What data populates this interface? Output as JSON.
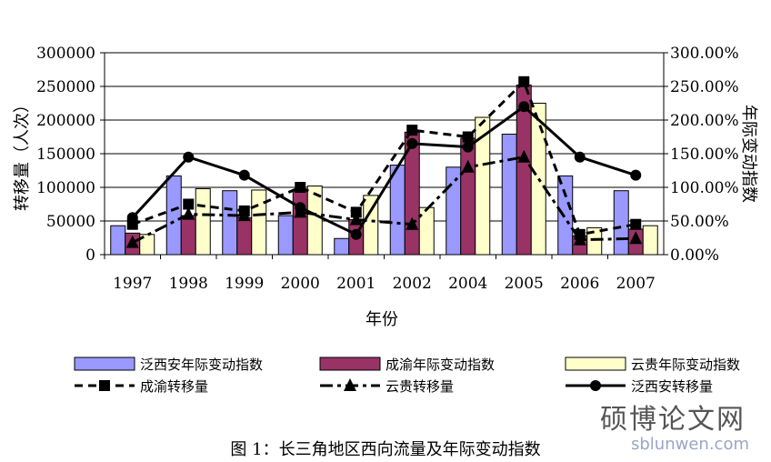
{
  "caption": "图 1：长三角地区西向流量及年际变动指数",
  "watermark": {
    "main": "硕博论文网",
    "sub": "sblunwen.com"
  },
  "chart_data": {
    "type": "bar",
    "categories": [
      "1997",
      "1998",
      "1999",
      "2000",
      "2001",
      "2002",
      "2004",
      "2005",
      "2006",
      "2007"
    ],
    "xlabel": "年份",
    "ylabel_left": "转移量（人次）",
    "ylabel_right": "年际变动指数",
    "ylim_left": [
      0,
      300000
    ],
    "yticks_left": [
      "0",
      "50000",
      "100000",
      "150000",
      "200000",
      "250000",
      "300000"
    ],
    "ylim_right": [
      0,
      3.0
    ],
    "yticks_right": [
      "0.00%",
      "50.00%",
      "100.00%",
      "150.00%",
      "200.00%",
      "250.00%",
      "300.00%"
    ],
    "grid": true,
    "bars": [
      {
        "name": "泛西安年际变动指数",
        "color": "#9999ff",
        "values": [
          0.43,
          1.17,
          0.95,
          0.58,
          0.24,
          1.33,
          1.3,
          1.79,
          1.17,
          0.95
        ]
      },
      {
        "name": "成渝年际变动指数",
        "color": "#993366",
        "values": [
          0.32,
          0.58,
          0.55,
          0.97,
          0.52,
          1.82,
          1.73,
          2.52,
          0.28,
          0.38
        ]
      },
      {
        "name": "云贵年际变动指数",
        "color": "#ffffcc",
        "values": [
          0.3,
          0.98,
          0.96,
          1.02,
          0.88,
          0.7,
          2.04,
          2.25,
          0.4,
          0.43
        ]
      }
    ],
    "lines": [
      {
        "name": "成渝转移量",
        "marker": "square",
        "style": "dashed",
        "values": [
          45000,
          75000,
          65000,
          100000,
          63000,
          185000,
          175000,
          257000,
          30000,
          45000
        ]
      },
      {
        "name": "云贵转移量",
        "marker": "triangle",
        "style": "dashdot",
        "values": [
          18000,
          60000,
          58000,
          63000,
          52000,
          45000,
          130000,
          145000,
          22000,
          24000
        ]
      },
      {
        "name": "泛西安转移量",
        "marker": "circle",
        "style": "solid",
        "values": [
          55000,
          145000,
          118000,
          70000,
          30000,
          165000,
          160000,
          220000,
          145000,
          118000
        ]
      }
    ],
    "legend_position": "bottom"
  }
}
